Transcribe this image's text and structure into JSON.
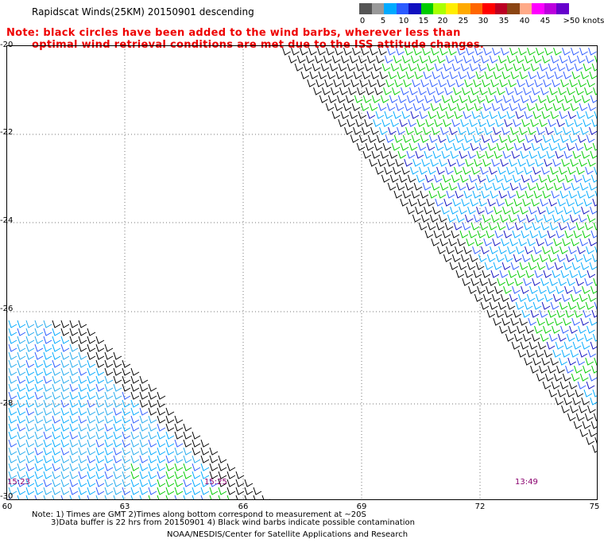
{
  "header": {
    "title": "Rapidscat Winds(25KM) 20150901 descending",
    "note_line1": "Note: black circles have been added to the wind barbs, wherever less than",
    "note_line2": "optimal wind retrieval conditions are met due to the ISS attitude changes."
  },
  "colorbar": {
    "colors": [
      "#555555",
      "#999999",
      "#00aaff",
      "#2b5bff",
      "#1010c0",
      "#00cc00",
      "#aaff00",
      "#ffee00",
      "#ffaa00",
      "#ff6600",
      "#ff0000",
      "#bb0022",
      "#8b4513",
      "#ffaa88",
      "#ff00ff",
      "#bb00dd",
      "#6600cc"
    ],
    "labels": [
      "0",
      "5",
      "10",
      "15",
      "20",
      "25",
      "30",
      "35",
      "40",
      "45",
      ">50"
    ],
    "unit": "knots"
  },
  "map": {
    "lat_labels": [
      "-20",
      "-22",
      "-24",
      "-26",
      "-28",
      "-30"
    ],
    "lon_labels": [
      "60",
      "63",
      "66",
      "69",
      "72",
      "75"
    ],
    "time_labels": [
      "15:23",
      "15:25",
      "13:49"
    ]
  },
  "footer": {
    "line1": "Note: 1) Times are GMT 2)Times along bottom correspond to measurement at ~20S",
    "line2": "3)Data buffer is 22 hrs from 20150901 4) Black wind barbs indicate possible contamination",
    "line3": "NOAA/NESDIS/Center for Satellite Applications and Research"
  }
}
